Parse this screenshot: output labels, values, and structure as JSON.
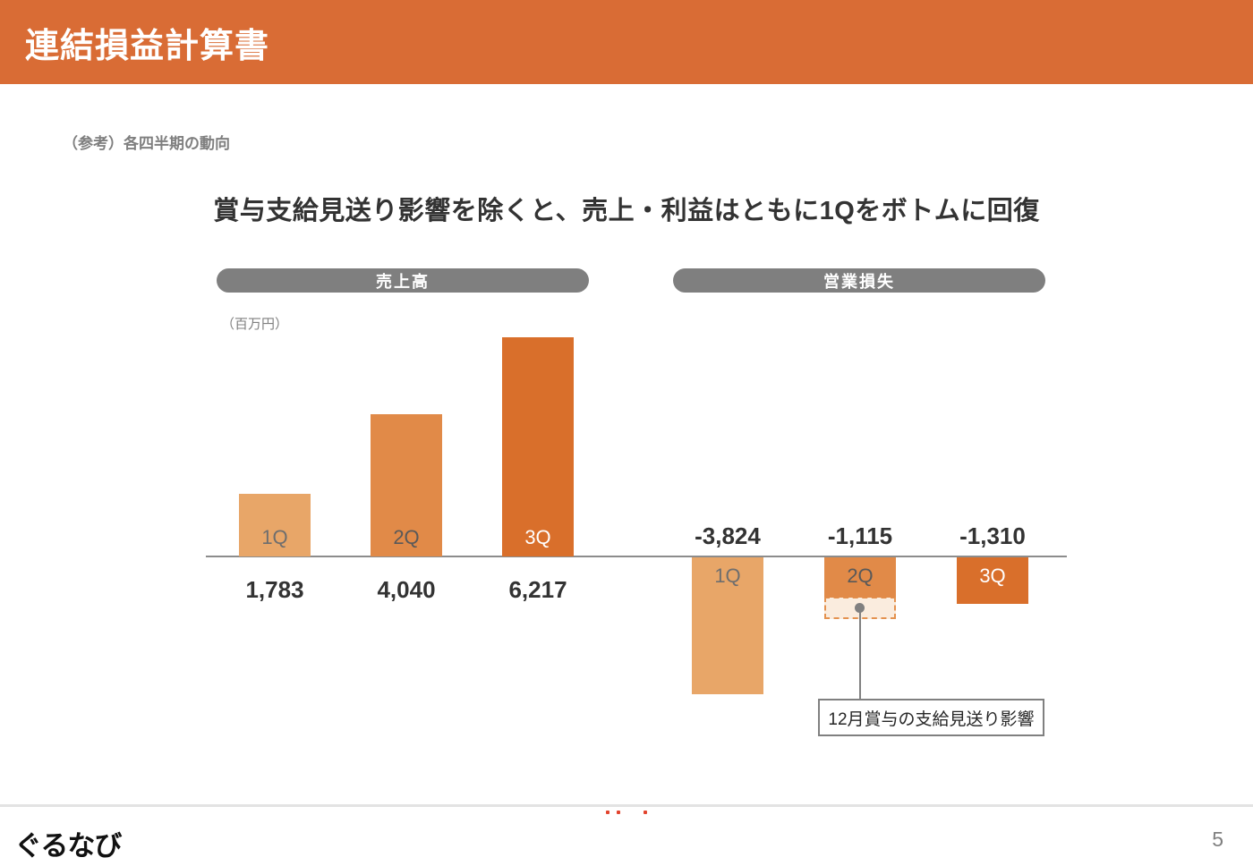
{
  "header": {
    "title": "連結損益計算書"
  },
  "subtitle": "（参考）各四半期の動向",
  "headline": "賞与支給見送り影響を除くと、売上・利益はともに1Qをボトムに回復",
  "footer": {
    "logo": "ぐるなび",
    "page_number": "5"
  },
  "colors": {
    "header_bg": "#D96C35",
    "pill_bg": "#7F7F7F",
    "bar_colors": [
      "#E8A668",
      "#E18A48",
      "#D96F2B"
    ],
    "bar_label_colors": [
      "#6E6E6E",
      "#595959",
      "#FFFFFF"
    ],
    "value_text": "#333333",
    "axis": "#8C8C8C",
    "impact_fill": "#FAECDE",
    "impact_border": "#E4924F",
    "callout_border": "#808080",
    "speck": "#E2442E"
  },
  "chart_data": [
    {
      "type": "bar",
      "title": "売上高",
      "unit_label": "（百万円）",
      "categories": [
        "1Q",
        "2Q",
        "3Q"
      ],
      "values": [
        1783,
        4040,
        6217
      ],
      "value_labels": [
        "1,783",
        "4,040",
        "6,217"
      ],
      "direction": "up",
      "grid": false,
      "legend": false,
      "value_label_position": "below-axis"
    },
    {
      "type": "bar",
      "title": "営業損失",
      "unit_label": "（百万円）",
      "categories": [
        "1Q",
        "2Q",
        "3Q"
      ],
      "values": [
        -3824,
        -1115,
        -1310
      ],
      "value_labels": [
        "-3,824",
        "-1,115",
        "-1,310"
      ],
      "direction": "down",
      "grid": false,
      "legend": false,
      "value_label_position": "above-axis",
      "annotation": "12月賞与の支給見送り影響"
    }
  ]
}
